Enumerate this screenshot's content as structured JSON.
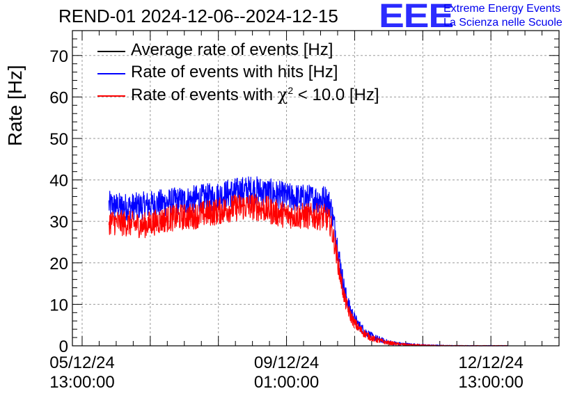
{
  "chart_data": {
    "type": "line",
    "title": "REND-01 2024-12-06--2024-12-15",
    "xlabel": "",
    "ylabel": "Rate [Hz]",
    "ylim": [
      0,
      76
    ],
    "yticks": [
      0,
      10,
      20,
      30,
      40,
      50,
      60,
      70
    ],
    "xlim_hours": [
      -4,
      196
    ],
    "xtick_labels": [
      {
        "hour": 0,
        "line1": "05/12/24",
        "line2": "13:00:00"
      },
      {
        "hour": 84,
        "line1": "09/12/24",
        "line2": "01:00:00"
      },
      {
        "hour": 168,
        "line1": "12/12/24",
        "line2": "13:00:00"
      }
    ],
    "grid": true,
    "legend_position": "top-left",
    "series": [
      {
        "name": "Average rate of events [Hz]",
        "color": "#000000",
        "hours": [],
        "values": []
      },
      {
        "name": "Rate of events with hits [Hz]",
        "color": "#0000ff",
        "hours": [
          11,
          15,
          20,
          25,
          30,
          35,
          40,
          45,
          50,
          55,
          60,
          65,
          70,
          72,
          75,
          80,
          85,
          90,
          95,
          100,
          102,
          104,
          106,
          108,
          110,
          112,
          114,
          116,
          118,
          120,
          125,
          130,
          135,
          140,
          145,
          150,
          155,
          160,
          165,
          170,
          175
        ],
        "values": [
          34.0,
          33.6,
          33.5,
          33.8,
          34.2,
          34.6,
          34.9,
          35.2,
          35.6,
          36.0,
          36.7,
          37.3,
          37.6,
          37.4,
          37.1,
          36.5,
          35.8,
          35.6,
          35.5,
          35.4,
          34.0,
          28.0,
          20.0,
          13.0,
          9.0,
          6.5,
          4.8,
          3.6,
          2.7,
          2.0,
          1.0,
          0.5,
          0.3,
          0.15,
          0.08,
          0.04,
          0.02,
          0.01,
          0.0,
          0.0,
          0.0
        ]
      },
      {
        "name": "Rate of events with χ² < 10.0 [Hz]",
        "label_main": "Rate of events with ",
        "label_chi": "χ",
        "label_exp": "2",
        "label_tail": " < 10.0 [Hz]",
        "color": "#ff0000",
        "hours": [
          11,
          15,
          20,
          25,
          30,
          35,
          40,
          45,
          50,
          55,
          60,
          65,
          70,
          72,
          75,
          80,
          85,
          90,
          95,
          100,
          102,
          104,
          106,
          108,
          110,
          112,
          114,
          116,
          118,
          120,
          125,
          130,
          135,
          140,
          145,
          150,
          155,
          160,
          165,
          170,
          175
        ],
        "values": [
          30.0,
          29.6,
          29.4,
          29.0,
          29.8,
          30.6,
          31.0,
          31.2,
          31.8,
          32.3,
          33.0,
          33.5,
          33.6,
          33.4,
          33.0,
          32.0,
          31.5,
          31.3,
          31.2,
          31.0,
          29.5,
          24.0,
          17.0,
          11.0,
          7.6,
          5.4,
          4.0,
          3.0,
          2.2,
          1.6,
          0.8,
          0.4,
          0.2,
          0.1,
          0.05,
          0.03,
          0.01,
          0.0,
          0.0,
          0.0,
          0.0
        ]
      }
    ]
  },
  "logo": {
    "mark": "EEE",
    "line1": "Extreme Energy Events",
    "line2": "La Scienza nelle Scuole"
  }
}
